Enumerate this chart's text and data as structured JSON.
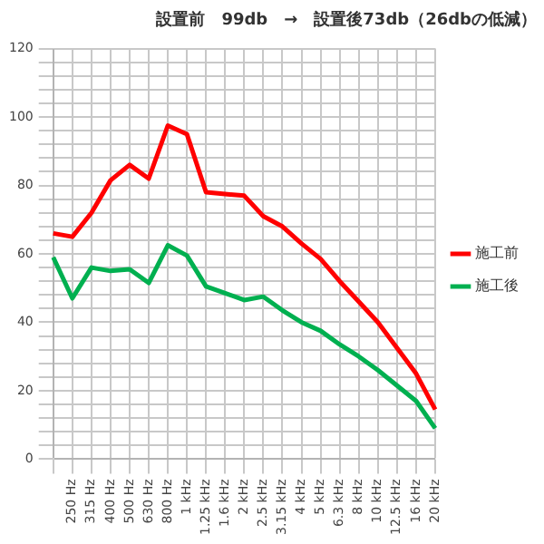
{
  "chart_data": {
    "type": "line",
    "title": "設置前　99db　→　設置後73db（26dbの低減）",
    "categories": [
      null,
      "250 Hz",
      "315 Hz",
      "400 Hz",
      "500 Hz",
      "630 Hz",
      "800 Hz",
      "1 kHz",
      "1.25 kHz",
      "1.6 kHz",
      "2 kHz",
      "2.5 kHz",
      "3.15 kHz",
      "4 kHz",
      "5 kHz",
      "6.3 kHz",
      "8 kHz",
      "10 kHz",
      "12.5 kHz",
      "16 kHz",
      "20 kHz"
    ],
    "series": [
      {
        "name": "施工前",
        "color": "#ff0000",
        "values": [
          66,
          65,
          72,
          81.5,
          86,
          82,
          97.5,
          95,
          78,
          77.5,
          77,
          71,
          68,
          63,
          58.5,
          52,
          46,
          40,
          32.5,
          25,
          14.5
        ]
      },
      {
        "name": "施工後",
        "color": "#00b050",
        "values": [
          59,
          47,
          56,
          55,
          55.5,
          51.5,
          62.5,
          59.5,
          50.5,
          48.5,
          46.5,
          47.5,
          43.5,
          40,
          37.5,
          33.5,
          30,
          26,
          21.5,
          17,
          9
        ]
      }
    ],
    "ylim": [
      0,
      120
    ],
    "yticks": [
      0,
      {
        "value": 4,
        "label": null
      },
      {
        "value": 8,
        "label": null
      },
      {
        "value": 12,
        "label": null
      },
      {
        "value": 16,
        "label": null
      },
      20,
      {
        "value": 24,
        "label": null
      },
      {
        "value": 28,
        "label": null
      },
      {
        "value": 32,
        "label": null
      },
      {
        "value": 36,
        "label": null
      },
      40,
      {
        "value": 44,
        "label": null
      },
      {
        "value": 48,
        "label": null
      },
      {
        "value": 52,
        "label": null
      },
      {
        "value": 56,
        "label": null
      },
      60,
      {
        "value": 64,
        "label": null
      },
      {
        "value": 68,
        "label": null
      },
      {
        "value": 72,
        "label": null
      },
      {
        "value": 76,
        "label": null
      },
      80,
      {
        "value": 84,
        "label": null
      },
      {
        "value": 88,
        "label": null
      },
      {
        "value": 92,
        "label": null
      },
      {
        "value": 96,
        "label": null
      },
      100,
      {
        "value": 104,
        "label": null
      },
      {
        "value": 108,
        "label": null
      },
      {
        "value": 112,
        "label": null
      },
      {
        "value": 116,
        "label": null
      },
      120
    ],
    "grid": true,
    "legend": "right",
    "marker": "none",
    "line_style": "solid"
  }
}
